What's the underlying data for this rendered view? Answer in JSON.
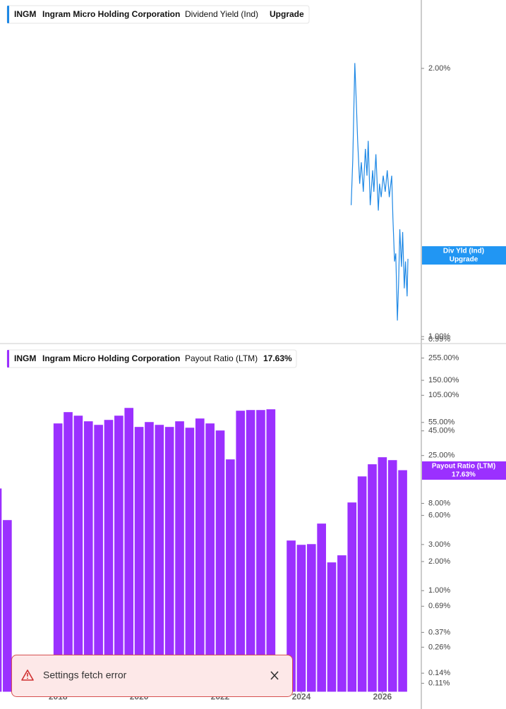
{
  "chart_data": [
    {
      "type": "line",
      "legend": {
        "symbol": "INGM",
        "company": "Ingram Micro Holding Corporation",
        "value": "Upgrade"
      },
      "badge": [
        "Div Yld (Ind)",
        "Upgrade"
      ],
      "series": [
        {
          "name": "Dividend Yield (Ind)",
          "color": "#1e88e5",
          "x": [
            2025.23,
            2025.27,
            2025.32,
            2025.36,
            2025.39,
            2025.44,
            2025.48,
            2025.53,
            2025.58,
            2025.62,
            2025.65,
            2025.7,
            2025.76,
            2025.79,
            2025.84,
            2025.9,
            2025.93,
            2025.97,
            2026.02,
            2026.07,
            2026.12,
            2026.17,
            2026.23,
            2026.26,
            2026.3,
            2026.33,
            2026.37,
            2026.4,
            2026.43,
            2026.47,
            2026.5,
            2026.54,
            2026.57,
            2026.61,
            2026.63
          ],
          "values": [
            1.49,
            1.66,
            2.02,
            1.86,
            1.73,
            1.57,
            1.65,
            1.54,
            1.7,
            1.6,
            1.73,
            1.49,
            1.62,
            1.54,
            1.68,
            1.47,
            1.57,
            1.52,
            1.6,
            1.54,
            1.62,
            1.52,
            1.6,
            1.44,
            1.28,
            1.31,
            1.06,
            1.2,
            1.4,
            1.26,
            1.39,
            1.18,
            1.28,
            1.15,
            1.29
          ]
        }
      ],
      "xlim": [
        2016.57,
        2026.96
      ],
      "ylim": [
        0.974,
        2.255
      ],
      "yticks": [
        {
          "value": 2,
          "label": "2.00%"
        },
        {
          "value": 1,
          "label": "1.00%"
        },
        {
          "value": 0.99,
          "label": "0.99%"
        }
      ]
    },
    {
      "type": "bar",
      "log_scale": true,
      "legend": {
        "symbol": "INGM",
        "company": "Ingram Micro Holding Corporation",
        "value": "17.63%"
      },
      "series": [
        {
          "name": "Payout Ratio (LTM)",
          "color": "#9b30ff",
          "x": [
            2016.5,
            2016.75,
            2018.0,
            2018.25,
            2018.5,
            2018.75,
            2019.0,
            2019.25,
            2019.5,
            2019.75,
            2020.0,
            2020.25,
            2020.5,
            2020.75,
            2021.0,
            2021.25,
            2021.5,
            2021.75,
            2022.0,
            2022.25,
            2022.5,
            2022.75,
            2023.0,
            2023.25,
            2023.75,
            2024.0,
            2024.25,
            2024.5,
            2024.75,
            2025.0,
            2025.25,
            2025.5,
            2025.75,
            2026.0,
            2026.25,
            2026.5
          ],
          "values": [
            11.4,
            5.37,
            53.7,
            70.3,
            64.6,
            56.5,
            51.9,
            58.4,
            64.6,
            77.7,
            49.4,
            55.5,
            51.9,
            49.4,
            56.5,
            48.5,
            60.4,
            53.7,
            45.4,
            22.8,
            72.7,
            73.9,
            73.9,
            75.2,
            3.3,
            2.98,
            3.03,
            4.94,
            1.96,
            2.32,
            8.17,
            15.2,
            20.3,
            24.0,
            22.4,
            17.63
          ]
        }
      ],
      "xlim": [
        2016.57,
        2026.96
      ],
      "xticks": [
        2018,
        2020,
        2022,
        2024,
        2026
      ],
      "ylim": [
        0.09,
        360
      ],
      "yticks": [
        {
          "value": 255,
          "label": "255.00%"
        },
        {
          "value": 150,
          "label": "150.00%"
        },
        {
          "value": 105,
          "label": "105.00%"
        },
        {
          "value": 55,
          "label": "55.00%"
        },
        {
          "value": 45,
          "label": "45.00%"
        },
        {
          "value": 25,
          "label": "25.00%"
        },
        {
          "value": 8,
          "label": "8.00%"
        },
        {
          "value": 6,
          "label": "6.00%"
        },
        {
          "value": 3,
          "label": "3.00%"
        },
        {
          "value": 2,
          "label": "2.00%"
        },
        {
          "value": 1,
          "label": "1.00%"
        },
        {
          "value": 0.69,
          "label": "0.69%"
        },
        {
          "value": 0.37,
          "label": "0.37%"
        },
        {
          "value": 0.26,
          "label": "0.26%"
        },
        {
          "value": 0.14,
          "label": "0.14%"
        },
        {
          "value": 0.11,
          "label": "0.11%"
        }
      ]
    }
  ],
  "toast": {
    "message": "Settings fetch error"
  }
}
